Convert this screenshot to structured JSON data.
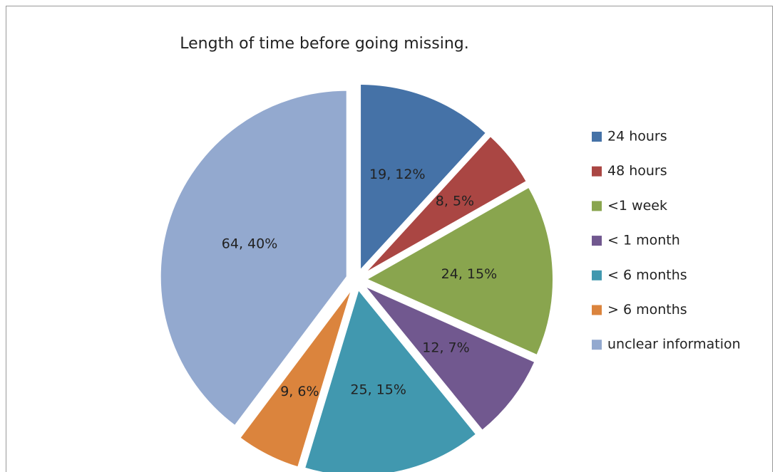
{
  "chart_data": {
    "type": "pie",
    "title": "Length of time before going missing.",
    "categories": [
      "24 hours",
      "48 hours",
      "<1 week",
      "< 1 month",
      "< 6 months",
      "> 6 months",
      "unclear information"
    ],
    "values": [
      19,
      8,
      24,
      12,
      25,
      9,
      64
    ],
    "value_labels": [
      "19, 12%",
      "8, 5%",
      "24, 15%",
      "12, 7%",
      "25, 15%",
      "9, 6%",
      "64, 40%"
    ],
    "colors": [
      "#4572a7",
      "#aa4643",
      "#89a54e",
      "#71588f",
      "#4198af",
      "#db843d",
      "#93a9cf"
    ],
    "legend": "right"
  }
}
